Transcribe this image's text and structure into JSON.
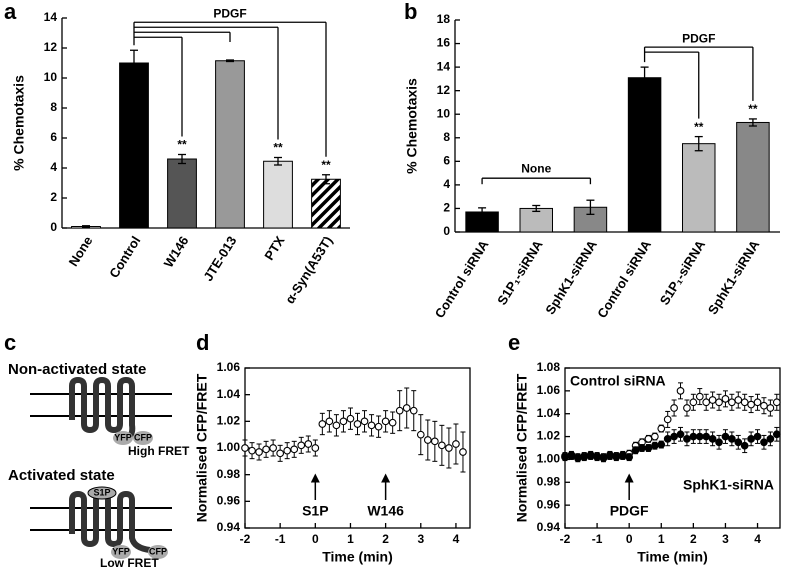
{
  "figure": {
    "panel_labels": [
      "a",
      "b",
      "c",
      "d",
      "e"
    ],
    "diagram": {
      "top_state": "Non-activated state",
      "top_yfp": "YFP",
      "top_cfp": "CFP",
      "top_fret": "High FRET",
      "bottom_state": "Activated state",
      "bottom_ligand": "S1P",
      "bottom_yfp": "YFP",
      "bottom_cfp": "CFP",
      "bottom_fret": "Low FRET"
    }
  },
  "chart_data": [
    {
      "type": "bar",
      "ylabel": "% Chemotaxis",
      "categories": [
        "None",
        "Control",
        "W146",
        "JTE-013",
        "PTX",
        "α-Syn(A53T)"
      ],
      "values": [
        0.1,
        11.0,
        4.6,
        11.15,
        4.45,
        3.25
      ],
      "errors": [
        0.05,
        0.85,
        0.3,
        0.05,
        0.25,
        0.3
      ],
      "colors": [
        "#ffffff",
        "#000000",
        "#555555",
        "#999999",
        "#dddddd",
        "#ffffff"
      ],
      "hatched_categories": [
        "α-Syn(A53T)"
      ],
      "ylim": [
        0,
        14
      ],
      "yticks": [
        0,
        2,
        4,
        6,
        8,
        10,
        12,
        14
      ],
      "annotations": [
        {
          "text": "**",
          "bar": 2
        },
        {
          "text": "**",
          "bar": 4
        },
        {
          "text": "**",
          "bar": 5
        }
      ],
      "brackets": [
        {
          "text": "PDGF",
          "from": 1,
          "to": [
            2,
            3,
            4,
            5
          ]
        }
      ]
    },
    {
      "type": "bar",
      "ylabel": "% Chemotaxis",
      "categories": [
        "Control siRNA",
        "S1P₁-siRNA",
        "SphK1-siRNA",
        "Control siRNA",
        "S1P₁-siRNA",
        "SphK1-siRNA"
      ],
      "values": [
        1.7,
        2.0,
        2.1,
        13.1,
        7.5,
        9.3
      ],
      "errors": [
        0.35,
        0.25,
        0.6,
        0.9,
        0.6,
        0.3
      ],
      "colors": [
        "#000000",
        "#bbbbbb",
        "#888888",
        "#000000",
        "#bbbbbb",
        "#888888"
      ],
      "ylim": [
        0,
        18
      ],
      "yticks": [
        0,
        2,
        4,
        6,
        8,
        10,
        12,
        14,
        16,
        18
      ],
      "annotations": [
        {
          "text": "**",
          "bar": 4
        },
        {
          "text": "**",
          "bar": 5
        }
      ],
      "brackets": [
        {
          "text": "None",
          "span": [
            0,
            2
          ]
        },
        {
          "text": "PDGF",
          "from": 3,
          "to": [
            4,
            5
          ]
        }
      ]
    },
    {
      "type": "scatter",
      "xlabel": "Time (min)",
      "ylabel": "Normalised CFP/FRET",
      "x": [
        -2,
        -1.8,
        -1.6,
        -1.4,
        -1.2,
        -1,
        -0.8,
        -0.6,
        -0.4,
        -0.2,
        0,
        0.2,
        0.4,
        0.6,
        0.8,
        1,
        1.2,
        1.4,
        1.6,
        1.8,
        2,
        2.2,
        2.4,
        2.6,
        2.8,
        3,
        3.2,
        3.4,
        3.6,
        3.8,
        4,
        4.2
      ],
      "series": [
        {
          "marker": "open",
          "values": [
            1.0,
            0.998,
            0.997,
            0.999,
            1.0,
            0.996,
            0.998,
            0.999,
            1.002,
            1.003,
            1.0,
            1.018,
            1.02,
            1.017,
            1.02,
            1.022,
            1.018,
            1.02,
            1.017,
            1.016,
            1.02,
            1.019,
            1.028,
            1.03,
            1.028,
            1.01,
            1.006,
            1.005,
            1.002,
            1.0,
            1.003,
            0.997
          ],
          "errors": [
            0.006,
            0.006,
            0.006,
            0.006,
            0.006,
            0.006,
            0.006,
            0.006,
            0.006,
            0.006,
            0.006,
            0.008,
            0.008,
            0.008,
            0.008,
            0.008,
            0.008,
            0.008,
            0.008,
            0.008,
            0.008,
            0.008,
            0.015,
            0.015,
            0.015,
            0.015,
            0.015,
            0.015,
            0.015,
            0.015,
            0.015,
            0.015
          ]
        }
      ],
      "xlim": [
        -2,
        4.4
      ],
      "xticks": [
        -2,
        -1,
        0,
        1,
        2,
        3,
        4
      ],
      "ylim": [
        0.94,
        1.06
      ],
      "yticks": [
        0.94,
        0.96,
        0.98,
        {
          "value": 1,
          "label": "1.00"
        },
        1.02,
        1.04,
        1.06
      ],
      "annotations": [
        {
          "text": "S1P",
          "x": 0
        },
        {
          "text": "W146",
          "x": 2
        }
      ]
    },
    {
      "type": "scatter",
      "xlabel": "Time (min)",
      "ylabel": "Normalised CFP/FRET",
      "legend": "inline",
      "x": [
        -2,
        -1.8,
        -1.6,
        -1.4,
        -1.2,
        -1,
        -0.8,
        -0.6,
        -0.4,
        -0.2,
        0,
        0.2,
        0.4,
        0.6,
        0.8,
        1,
        1.2,
        1.4,
        1.6,
        1.8,
        2,
        2.2,
        2.4,
        2.6,
        2.8,
        3,
        3.2,
        3.4,
        3.6,
        3.8,
        4,
        4.2,
        4.4,
        4.6
      ],
      "series": [
        {
          "name": "Control siRNA",
          "marker": "open",
          "values": [
            1.003,
            1.004,
            1.002,
            1.003,
            1.004,
            1.003,
            1.002,
            1.004,
            1.003,
            1.004,
            1.005,
            1.012,
            1.015,
            1.018,
            1.02,
            1.027,
            1.035,
            1.045,
            1.06,
            1.045,
            1.05,
            1.055,
            1.05,
            1.052,
            1.05,
            1.053,
            1.05,
            1.052,
            1.05,
            1.048,
            1.05,
            1.047,
            1.045,
            1.05
          ],
          "errors": [
            0.003,
            0.003,
            0.003,
            0.003,
            0.003,
            0.003,
            0.003,
            0.003,
            0.003,
            0.003,
            0.003,
            0.003,
            0.003,
            0.003,
            0.003,
            0.003,
            0.007,
            0.007,
            0.007,
            0.007,
            0.007,
            0.007,
            0.007,
            0.007,
            0.007,
            0.007,
            0.007,
            0.007,
            0.007,
            0.007,
            0.007,
            0.007,
            0.007,
            0.007
          ]
        },
        {
          "name": "SphK1-siRNA",
          "marker": "filled",
          "values": [
            1.002,
            1.003,
            1.001,
            1.002,
            1.003,
            1.002,
            1.001,
            1.003,
            1.002,
            1.003,
            1.002,
            1.008,
            1.01,
            1.01,
            1.012,
            1.013,
            1.018,
            1.02,
            1.022,
            1.018,
            1.02,
            1.02,
            1.02,
            1.018,
            1.015,
            1.02,
            1.018,
            1.015,
            1.012,
            1.018,
            1.02,
            1.015,
            1.018,
            1.022
          ],
          "errors": [
            0.003,
            0.003,
            0.003,
            0.003,
            0.003,
            0.003,
            0.003,
            0.003,
            0.003,
            0.003,
            0.003,
            0.003,
            0.003,
            0.003,
            0.003,
            0.003,
            0.006,
            0.006,
            0.006,
            0.006,
            0.006,
            0.006,
            0.006,
            0.006,
            0.006,
            0.006,
            0.006,
            0.006,
            0.006,
            0.006,
            0.006,
            0.006,
            0.006,
            0.006
          ]
        }
      ],
      "xlim": [
        -2,
        4.7
      ],
      "xticks": [
        -2,
        -1,
        0,
        1,
        2,
        3,
        4
      ],
      "ylim": [
        0.94,
        1.08
      ],
      "yticks": [
        0.94,
        0.96,
        0.98,
        {
          "value": 1,
          "label": "1.00"
        },
        1.02,
        1.04,
        1.06,
        1.08
      ],
      "annotations": [
        {
          "text": "PDGF",
          "x": 0
        }
      ]
    }
  ]
}
